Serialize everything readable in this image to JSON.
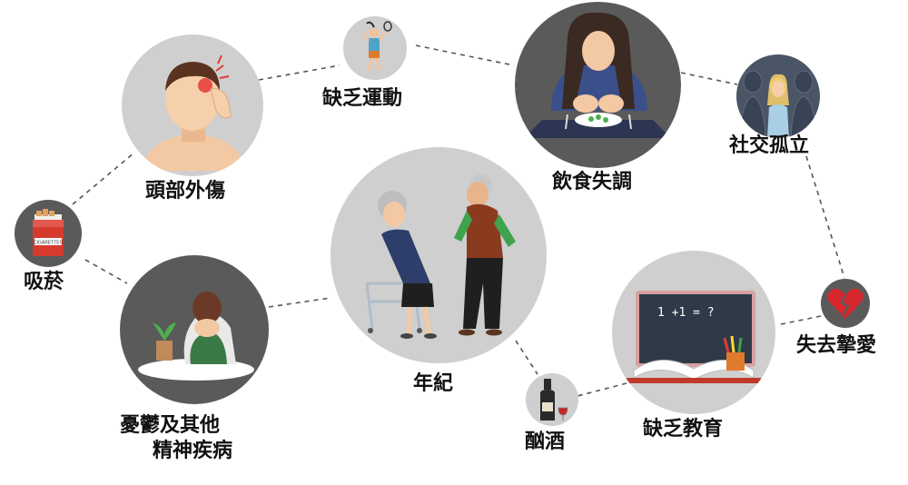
{
  "labels": {
    "smoking": "吸菸",
    "head_injury": "頭部外傷",
    "lack_exercise": "缺乏運動",
    "poor_diet": "飲食失調",
    "social_isolation": "社交孤立",
    "loss_loved_one": "失去摯愛",
    "lack_education": "缺乏教育",
    "alcohol": "酗酒",
    "age": "年紀",
    "depression_line1": "憂鬱及其他",
    "depression_line2": "精神疾病"
  },
  "blackboard_text": "1 +1 = ?",
  "cigarette_pack_text": "CIGARETTES",
  "colors": {
    "light_circle": "#cfcfcf",
    "dark_circle": "#5a5a5a",
    "dashed_line": "#555555",
    "heart_red": "#d8262e"
  }
}
